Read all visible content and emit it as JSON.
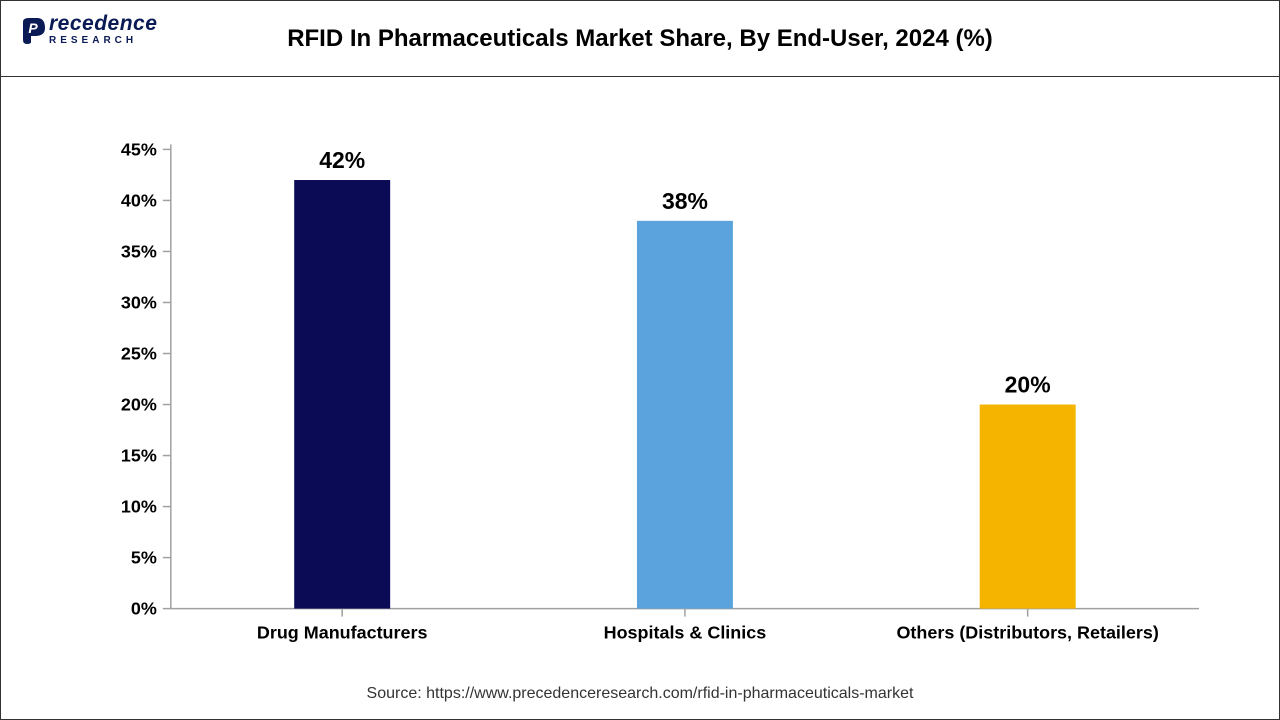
{
  "logo": {
    "main": "recedence",
    "initial": "P",
    "sub": "RESEARCH",
    "color": "#0a1a55"
  },
  "chart": {
    "type": "bar",
    "title": "RFID In Pharmaceuticals Market Share, By End-User, 2024 (%)",
    "title_fontsize": 24,
    "categories": [
      "Drug Manufacturers",
      "Hospitals & Clinics",
      "Others (Distributors, Retailers)"
    ],
    "values": [
      42,
      38,
      20
    ],
    "value_labels": [
      "42%",
      "38%",
      "20%"
    ],
    "bar_colors": [
      "#0a0a55",
      "#5aa3dd",
      "#f4b400"
    ],
    "ylim": [
      0,
      45
    ],
    "ytick_step": 5,
    "ytick_labels": [
      "0%",
      "5%",
      "10%",
      "15%",
      "20%",
      "25%",
      "30%",
      "35%",
      "40%",
      "45%"
    ],
    "tick_fontsize": 18,
    "value_fontsize": 23,
    "cat_fontsize": 18,
    "bar_width_ratio": 0.28,
    "background_color": "#ffffff",
    "axis_color": "#a0a0a0",
    "tickmark_color": "#a0a0a0"
  },
  "source": {
    "text": "Source: https://www.precedenceresearch.com/rfid-in-pharmaceuticals-market",
    "fontsize": 16
  }
}
